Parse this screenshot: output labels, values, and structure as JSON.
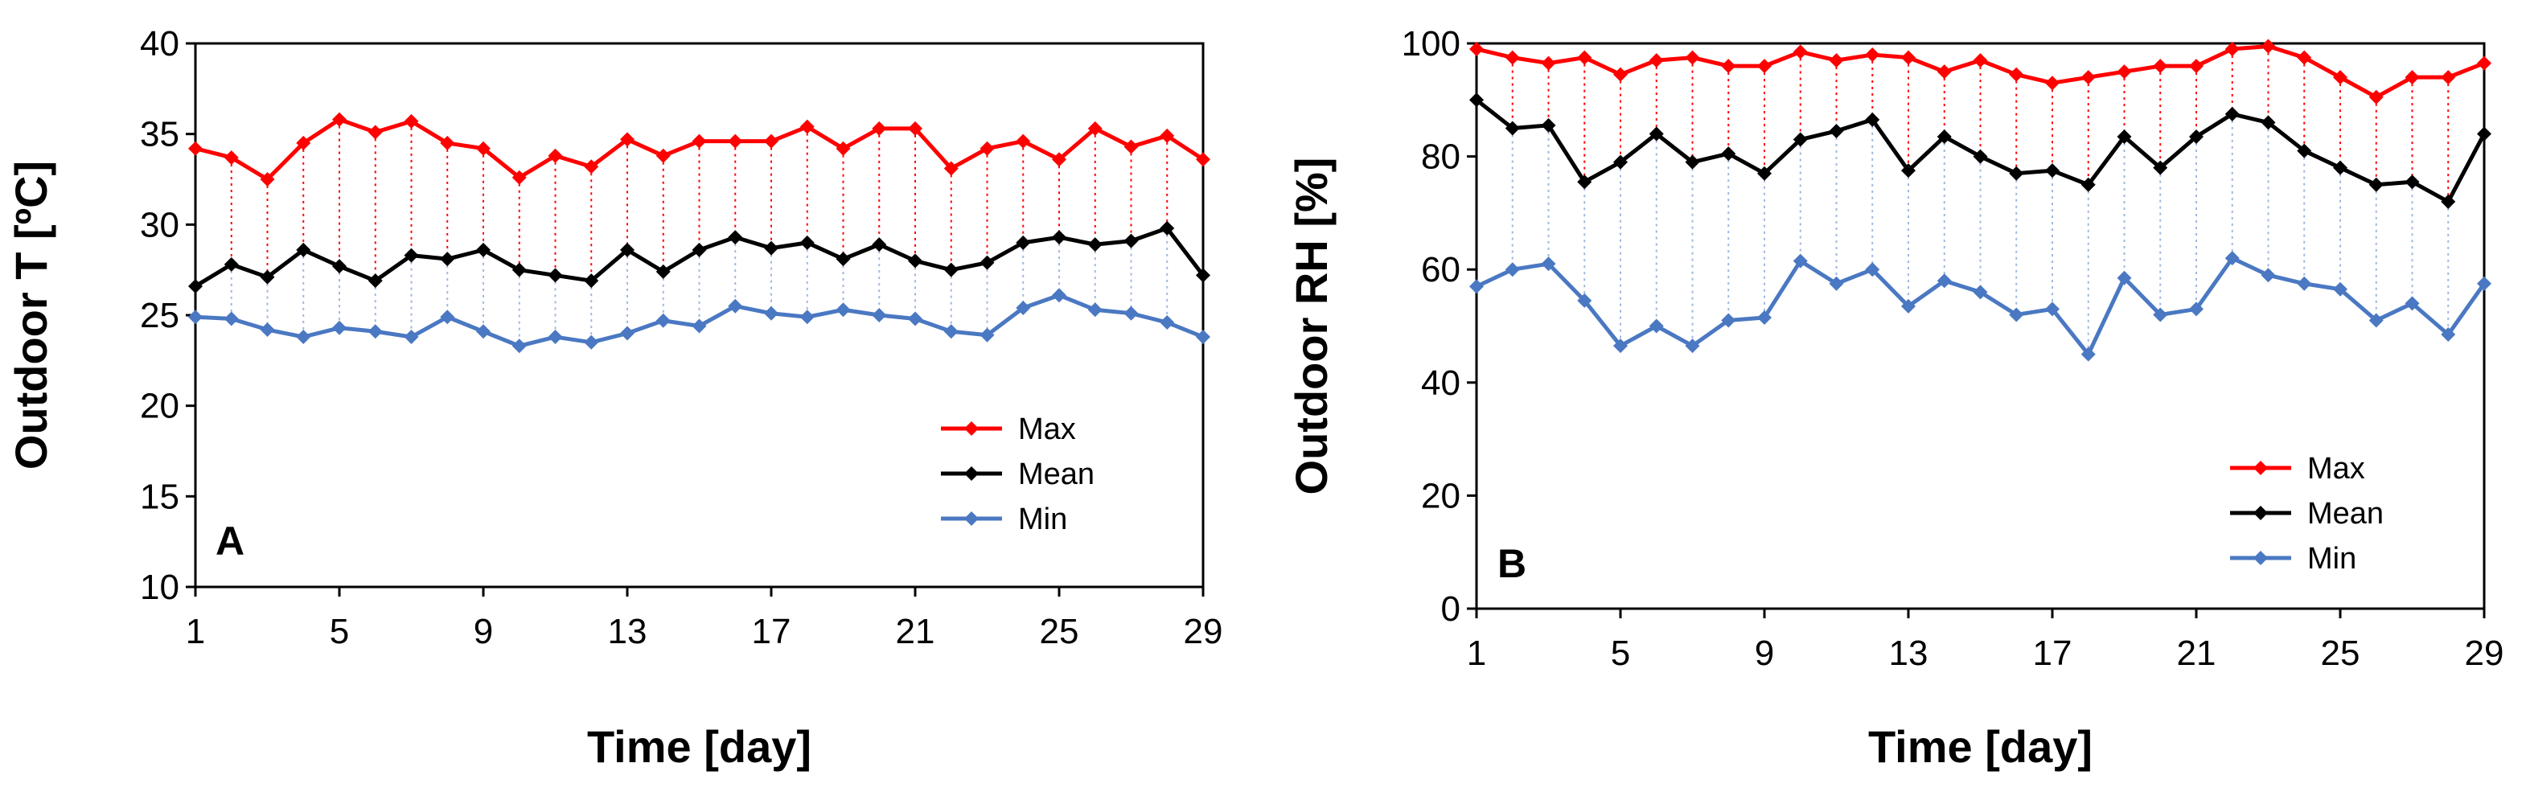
{
  "chart_data": [
    {
      "type": "line",
      "panel_label": "A",
      "xlabel": "Time [day]",
      "ylabel": "Outdoor T [ºC]",
      "xlim": [
        1,
        29
      ],
      "ylim": [
        10,
        40
      ],
      "xticks": [
        1,
        5,
        9,
        13,
        17,
        21,
        25,
        29
      ],
      "yticks": [
        10,
        15,
        20,
        25,
        30,
        35,
        40
      ],
      "x": [
        1,
        2,
        3,
        4,
        5,
        6,
        7,
        8,
        9,
        10,
        11,
        12,
        13,
        14,
        15,
        16,
        17,
        18,
        19,
        20,
        21,
        22,
        23,
        24,
        25,
        26,
        27,
        28,
        29
      ],
      "series": [
        {
          "name": "Max",
          "color": "#ff0000",
          "values": [
            34.2,
            33.7,
            32.5,
            34.5,
            35.8,
            35.1,
            35.7,
            34.5,
            34.2,
            32.6,
            33.8,
            33.2,
            34.7,
            33.8,
            34.6,
            34.6,
            34.6,
            35.4,
            34.2,
            35.3,
            35.3,
            33.1,
            34.2,
            34.6,
            33.6,
            35.3,
            34.3,
            34.9,
            33.6
          ]
        },
        {
          "name": "Mean",
          "color": "#000000",
          "values": [
            26.6,
            27.8,
            27.1,
            28.6,
            27.7,
            26.9,
            28.3,
            28.1,
            28.6,
            27.5,
            27.2,
            26.9,
            28.6,
            27.4,
            28.6,
            29.3,
            28.7,
            29.0,
            28.1,
            28.9,
            28.0,
            27.5,
            27.9,
            29.0,
            29.3,
            28.9,
            29.1,
            29.8,
            27.2
          ]
        },
        {
          "name": "Min",
          "color": "#4a78c2",
          "values": [
            24.9,
            24.8,
            24.2,
            23.8,
            24.3,
            24.1,
            23.8,
            24.9,
            24.1,
            23.3,
            23.8,
            23.5,
            24.0,
            24.7,
            24.4,
            25.5,
            25.1,
            24.9,
            25.3,
            25.0,
            24.8,
            24.1,
            23.9,
            25.4,
            26.1,
            25.3,
            25.1,
            24.6,
            23.8
          ]
        }
      ]
    },
    {
      "type": "line",
      "panel_label": "B",
      "xlabel": "Time [day]",
      "ylabel": "Outdoor RH [%]",
      "xlim": [
        1,
        29
      ],
      "ylim": [
        0,
        100
      ],
      "xticks": [
        1,
        5,
        9,
        13,
        17,
        21,
        25,
        29
      ],
      "yticks": [
        0,
        20,
        40,
        60,
        80,
        100
      ],
      "x": [
        1,
        2,
        3,
        4,
        5,
        6,
        7,
        8,
        9,
        10,
        11,
        12,
        13,
        14,
        15,
        16,
        17,
        18,
        19,
        20,
        21,
        22,
        23,
        24,
        25,
        26,
        27,
        28,
        29
      ],
      "series": [
        {
          "name": "Max",
          "color": "#ff0000",
          "values": [
            99,
            97.5,
            96.5,
            97.5,
            94.5,
            97,
            97.5,
            96,
            96,
            98.5,
            97,
            98,
            97.5,
            95,
            97,
            94.5,
            93,
            94,
            95,
            96,
            96,
            99,
            99.5,
            97.5,
            94,
            90.5,
            94,
            94,
            96.5
          ]
        },
        {
          "name": "Mean",
          "color": "#000000",
          "values": [
            90,
            85,
            85.5,
            75.5,
            79,
            84,
            79,
            80.5,
            77,
            83,
            84.5,
            86.5,
            77.5,
            83.5,
            80,
            77,
            77.5,
            75,
            83.5,
            78,
            83.5,
            87.5,
            86,
            81,
            78,
            75,
            75.5,
            72,
            84
          ]
        },
        {
          "name": "Min",
          "color": "#4a78c2",
          "values": [
            57,
            60,
            61,
            54.5,
            46.5,
            50,
            46.5,
            51,
            51.5,
            61.5,
            57.5,
            60,
            53.5,
            58,
            56,
            52,
            53,
            45,
            58.5,
            52,
            53,
            62,
            59,
            57.5,
            56.5,
            51,
            54,
            48.5,
            57.5
          ]
        }
      ]
    }
  ]
}
